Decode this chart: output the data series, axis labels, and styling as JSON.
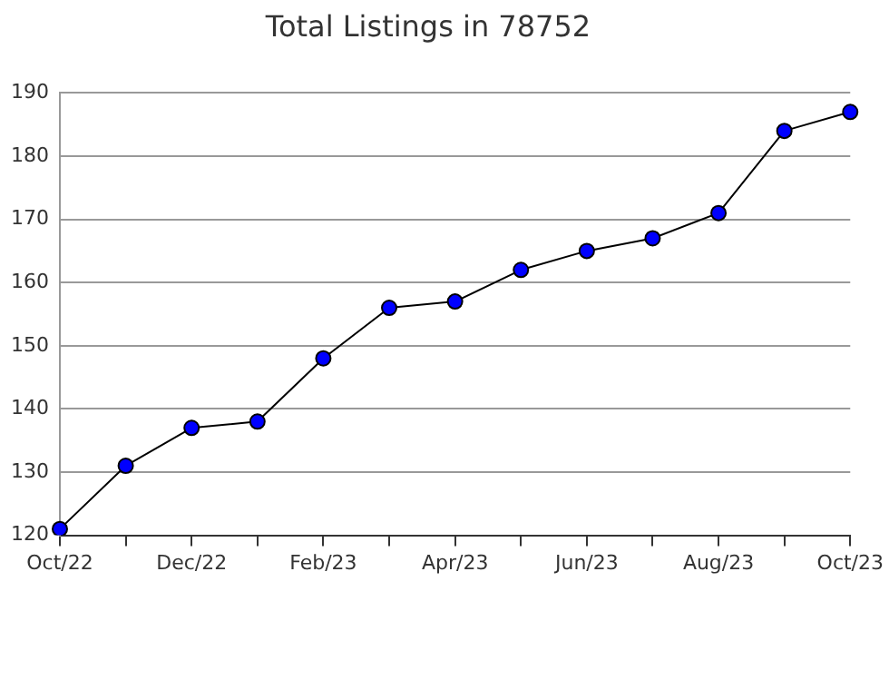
{
  "chart_data": {
    "type": "line",
    "title": "Total Listings in 78752",
    "categories": [
      "Oct/22",
      null,
      "Dec/22",
      null,
      "Feb/23",
      null,
      "Apr/23",
      null,
      "Jun/23",
      null,
      "Aug/23",
      null,
      "Oct/23"
    ],
    "series": [
      {
        "color": "#0000ff",
        "values": [
          121,
          131,
          137,
          138,
          148,
          156,
          157,
          162,
          165,
          167,
          171,
          184,
          187
        ]
      }
    ],
    "ylim": [
      120,
      190
    ],
    "yticks": [
      120,
      130,
      140,
      150,
      160,
      170,
      180,
      190
    ],
    "grid": "y",
    "marker": "circle",
    "line_style": "solid",
    "legend": false
  }
}
